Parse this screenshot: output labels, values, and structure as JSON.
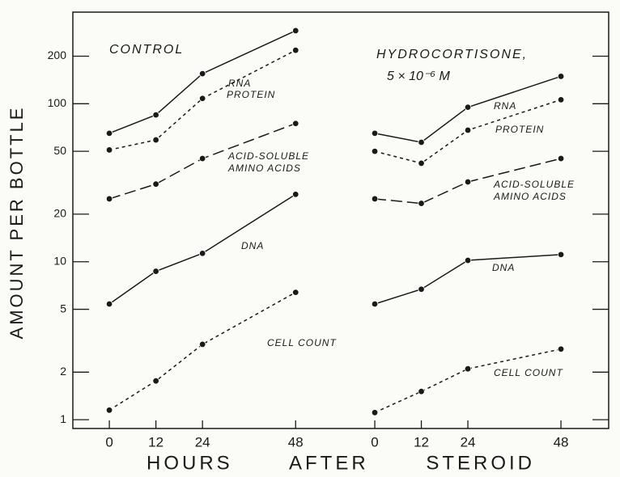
{
  "chart_data": [
    {
      "type": "line",
      "title": "CONTROL",
      "ylabel": "AMOUNT PER BOTTLE",
      "xlabel": "HOURS AFTER STEROID",
      "x": [
        0,
        12,
        24,
        48
      ],
      "xlim": [
        -9.4,
        59
      ],
      "xticks": [
        0,
        12,
        24,
        48
      ],
      "ylim": [
        0.88,
        380
      ],
      "yticks": [
        1,
        2,
        5,
        10,
        20,
        50,
        100,
        200
      ],
      "log_y": true,
      "series": [
        {
          "name": "RNA",
          "color": "#1a1a1a",
          "dash": "solid",
          "values": [
            65,
            85,
            155,
            290
          ]
        },
        {
          "name": "PROTEIN",
          "color": "#1a1a1a",
          "dash": "dotted",
          "values": [
            51,
            59,
            108,
            218
          ]
        },
        {
          "name": "ACID-SOLUBLE\nAMINO ACIDS",
          "color": "#1a1a1a",
          "dash": "dashed",
          "values": [
            25,
            31,
            45,
            75
          ]
        },
        {
          "name": "DNA",
          "color": "#1a1a1a",
          "dash": "solid",
          "values": [
            5.4,
            8.7,
            11.3,
            26.7
          ]
        },
        {
          "name": "CELL COUNT",
          "color": "#1a1a1a",
          "dash": "dotted",
          "values": [
            1.15,
            1.76,
            3.0,
            6.4
          ]
        }
      ]
    },
    {
      "type": "line",
      "title": "HYDROCORTISONE,",
      "subtitle": "5 × 10⁻⁶ M",
      "x": [
        0,
        12,
        24,
        48
      ],
      "xlim": [
        -9.4,
        60.3
      ],
      "xticks": [
        0,
        12,
        24,
        48
      ],
      "ylim": [
        0.88,
        380
      ],
      "yticks": [
        1,
        2,
        5,
        10,
        20,
        50,
        100,
        200
      ],
      "log_y": true,
      "series": [
        {
          "name": "RNA",
          "color": "#1a1a1a",
          "dash": "solid",
          "values": [
            65,
            57,
            95,
            149
          ]
        },
        {
          "name": "PROTEIN",
          "color": "#1a1a1a",
          "dash": "dotted",
          "values": [
            50,
            42,
            68,
            106
          ]
        },
        {
          "name": "ACID-SOLUBLE\nAMINO ACIDS",
          "color": "#1a1a1a",
          "dash": "dashed",
          "values": [
            25,
            23.4,
            32,
            45
          ]
        },
        {
          "name": "DNA",
          "color": "#1a1a1a",
          "dash": "solid",
          "values": [
            5.4,
            6.7,
            10.2,
            11.1
          ]
        },
        {
          "name": "CELL COUNT",
          "color": "#1a1a1a",
          "dash": "dotted",
          "values": [
            1.11,
            1.51,
            2.1,
            2.8
          ]
        }
      ]
    }
  ]
}
